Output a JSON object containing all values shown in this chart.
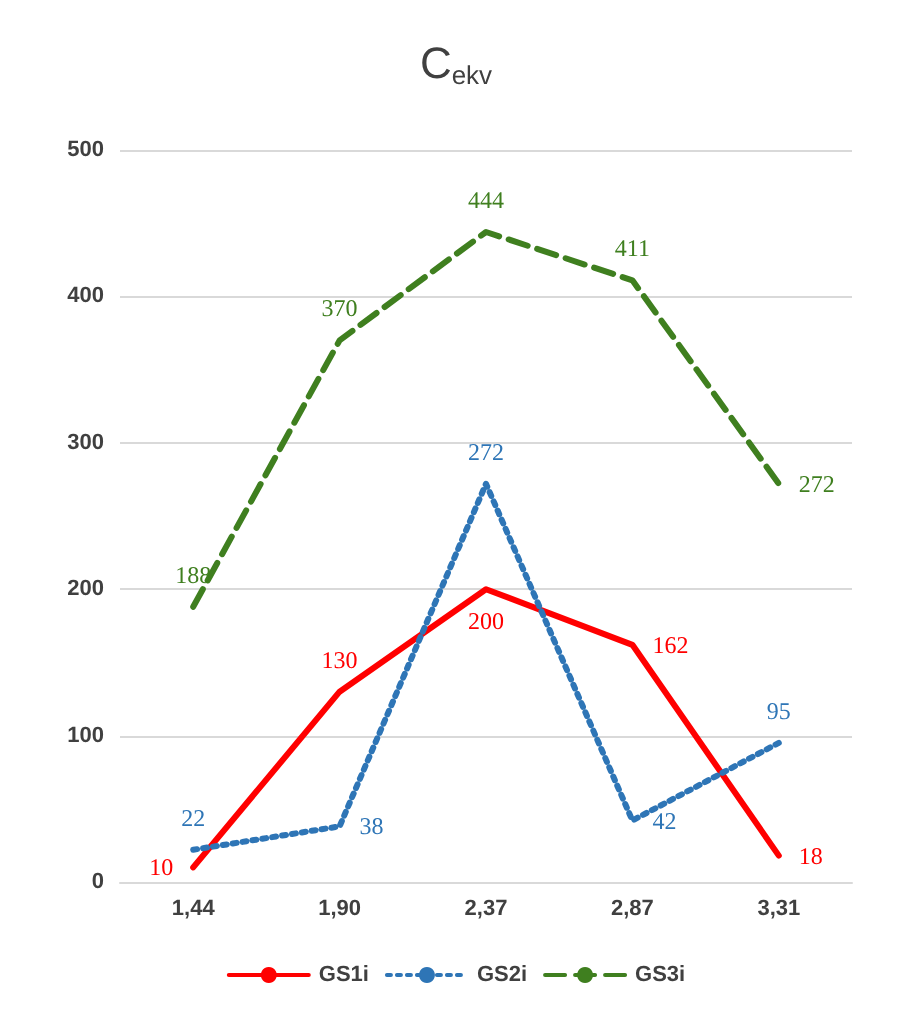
{
  "chart_data": {
    "type": "line",
    "title": "C$_{ekv}$",
    "categories": [
      "1,44",
      "1,90",
      "2,37",
      "2,87",
      "3,31"
    ],
    "series": [
      {
        "name": "GS1i",
        "color": "#ff0000",
        "values": [
          10,
          130,
          200,
          162,
          18
        ],
        "line_style": "solid"
      },
      {
        "name": "GS2i",
        "color": "#2e75b6",
        "values": [
          22,
          38,
          272,
          42,
          95
        ],
        "line_style": "dotted"
      },
      {
        "name": "GS3i",
        "color": "#3f7f1f",
        "values": [
          188,
          370,
          444,
          411,
          272
        ],
        "line_style": "dashed"
      }
    ],
    "ylim": [
      0,
      500
    ],
    "yticks": [
      0,
      100,
      200,
      300,
      400,
      500
    ],
    "grid": "y",
    "legend": "bottom",
    "data_labels": true,
    "marker": "none"
  }
}
